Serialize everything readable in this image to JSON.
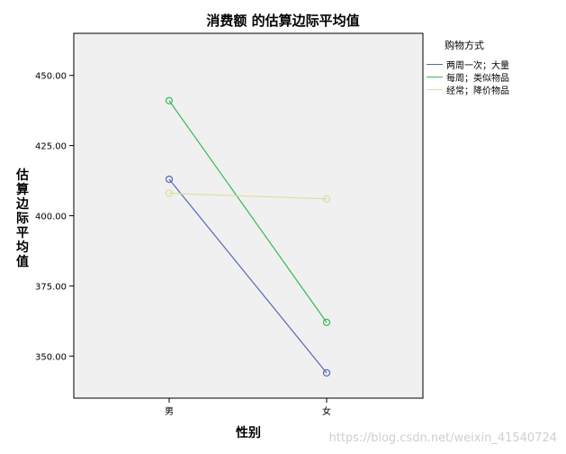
{
  "chart_data": {
    "type": "line",
    "title": "消费额 的估算边际平均值",
    "xlabel": "性别",
    "ylabel": "估算边际平均值",
    "categories": [
      "男",
      "女"
    ],
    "ylim": [
      335,
      465
    ],
    "yticks": [
      "350.00",
      "375.00",
      "400.00",
      "425.00",
      "450.00"
    ],
    "yticks_values": [
      350,
      375,
      400,
      425,
      450
    ],
    "legend_title": "购物方式",
    "legend_position": "right",
    "grid": false,
    "series": [
      {
        "name": "两周一次；大量",
        "color": "#5566bb",
        "values": [
          413,
          344
        ]
      },
      {
        "name": "每周；类似物品",
        "color": "#33bb55",
        "values": [
          441,
          362
        ]
      },
      {
        "name": "经常；降价物品",
        "color": "#dddda0",
        "values": [
          408,
          406
        ]
      }
    ]
  },
  "watermark": "https://blog.csdn.net/weixin_41540724"
}
